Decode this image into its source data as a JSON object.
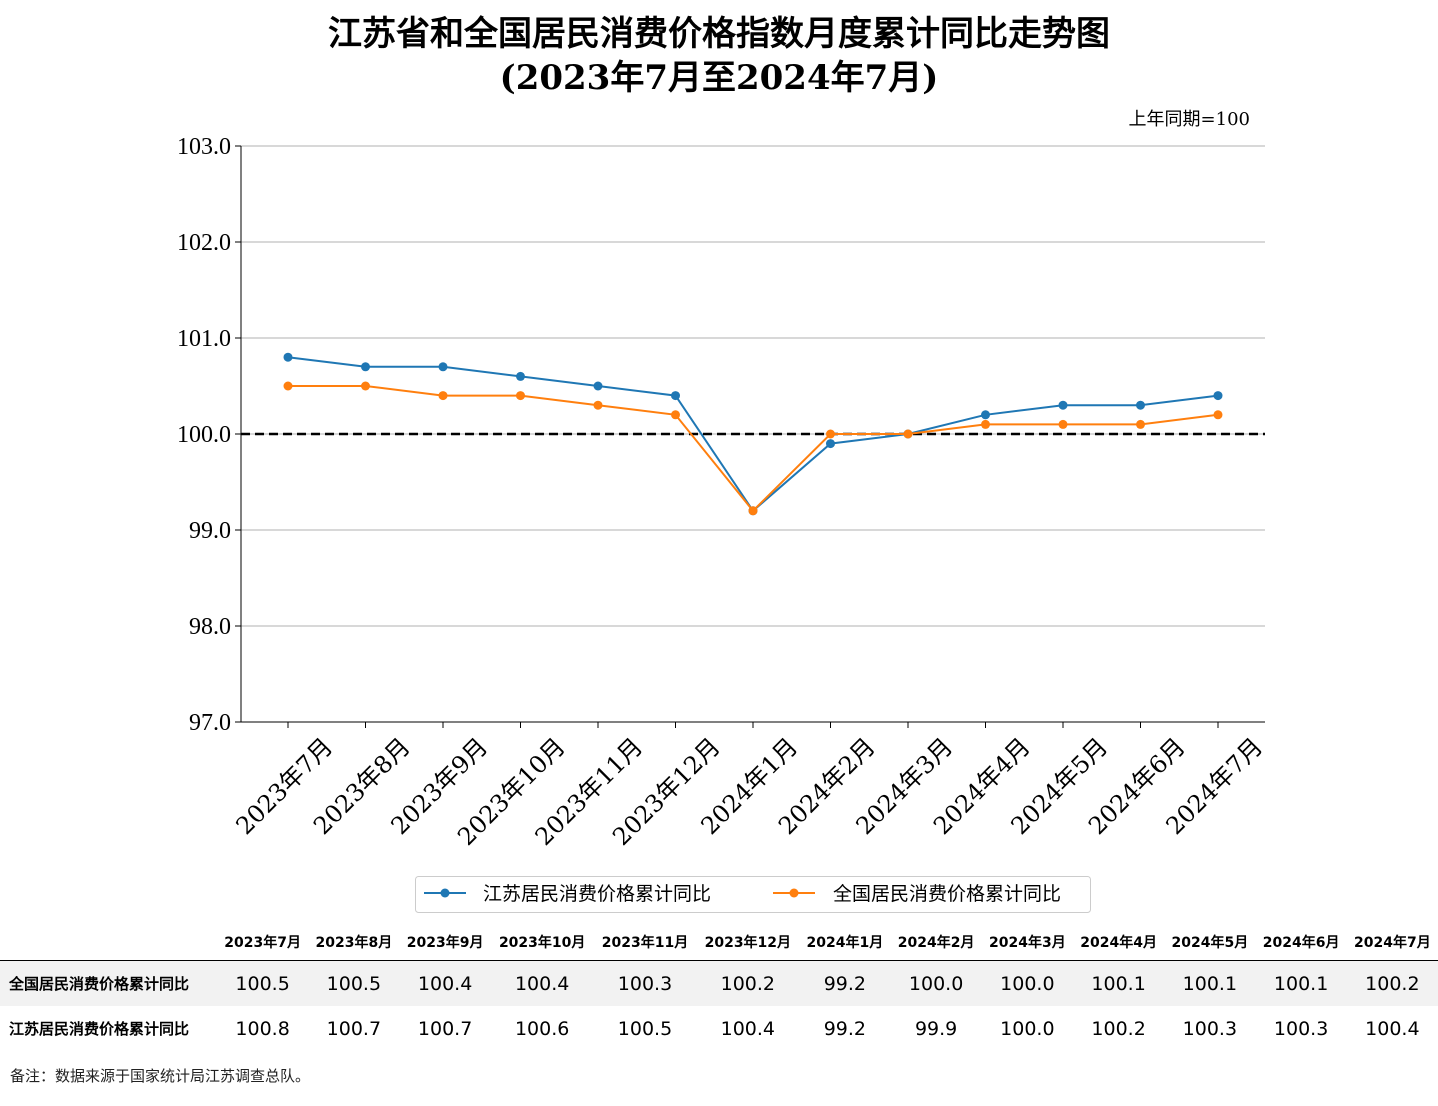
{
  "chart_data": {
    "type": "line",
    "title": "江苏省和全国居民消费价格指数月度累计同比走势图",
    "subtitle": "(2023年7月至2024年7月)",
    "unit_note": "上年同期=100",
    "categories": [
      "2023年7月",
      "2023年8月",
      "2023年9月",
      "2023年10月",
      "2023年11月",
      "2023年12月",
      "2024年1月",
      "2024年2月",
      "2024年3月",
      "2024年4月",
      "2024年5月",
      "2024年6月",
      "2024年7月"
    ],
    "series": [
      {
        "name": "江苏居民消费价格累计同比",
        "color": "#1f77b4",
        "values": [
          100.8,
          100.7,
          100.7,
          100.6,
          100.5,
          100.4,
          99.2,
          99.9,
          100.0,
          100.2,
          100.3,
          100.3,
          100.4
        ]
      },
      {
        "name": "全国居民消费价格累计同比",
        "color": "#ff7f0e",
        "values": [
          100.5,
          100.5,
          100.4,
          100.4,
          100.3,
          100.2,
          99.2,
          100.0,
          100.0,
          100.1,
          100.1,
          100.1,
          100.2
        ]
      }
    ],
    "ylim": [
      97.0,
      103.0
    ],
    "yticks": [
      97.0,
      98.0,
      99.0,
      100.0,
      101.0,
      102.0,
      103.0
    ],
    "reference_line": 100.0,
    "grid": "horizontal",
    "legend": "bottom-center"
  },
  "table": {
    "headers": [
      "2023年7月",
      "2023年8月",
      "2023年9月",
      "2023年10月",
      "2023年11月",
      "2023年12月",
      "2024年1月",
      "2024年2月",
      "2024年3月",
      "2024年4月",
      "2024年5月",
      "2024年6月",
      "2024年7月"
    ],
    "rows": [
      {
        "label": "全国居民消费价格累计同比",
        "values": [
          "100.5",
          "100.5",
          "100.4",
          "100.4",
          "100.3",
          "100.2",
          "99.2",
          "100.0",
          "100.0",
          "100.1",
          "100.1",
          "100.1",
          "100.2"
        ]
      },
      {
        "label": "江苏居民消费价格累计同比",
        "values": [
          "100.8",
          "100.7",
          "100.7",
          "100.6",
          "100.5",
          "100.4",
          "99.2",
          "99.9",
          "100.0",
          "100.2",
          "100.3",
          "100.3",
          "100.4"
        ]
      }
    ]
  },
  "footnote": "备注：数据来源于国家统计局江苏调查总队。"
}
